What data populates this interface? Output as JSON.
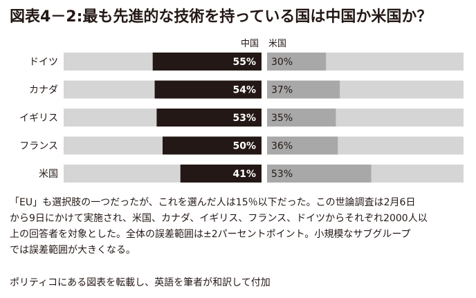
{
  "title": "図表4－2:最も先進的な技術を持っている国は中国か米国か？",
  "chart_data": {
    "type": "bar",
    "orientation": "horizontal",
    "categories": [
      "ドイツ",
      "カナダ",
      "イギリス",
      "フランス",
      "米国"
    ],
    "series": [
      {
        "name": "中国",
        "values": [
          55,
          54,
          53,
          50,
          41
        ],
        "color": "#231815"
      },
      {
        "name": "米国",
        "values": [
          30,
          37,
          35,
          36,
          53
        ],
        "color": "#a8a8a8"
      }
    ],
    "value_labels": {
      "中国": [
        "55%",
        "54%",
        "53%",
        "50%",
        "41%"
      ],
      "米国": [
        "30%",
        "37%",
        "35%",
        "36%",
        "53%"
      ]
    },
    "xlim": [
      0,
      100
    ],
    "background_color": "#d5d5d5",
    "grid": false
  },
  "notes": [
    "「EU」も選択肢の一つだったが、これを選んだ人は15％以下だった。この世論調査は2月6日",
    "から9日にかけて実施され、米国、カナダ、イギリス、フランス、ドイツからそれぞれ2000人以",
    "上の回答者を対象とした。全体の誤差範囲は±2パーセントポイント。小規模なサブグループ",
    "では誤差範囲が大きくなる。"
  ],
  "source": "ポリティコにある図表を転載し、英語を筆者が和訳して付加"
}
